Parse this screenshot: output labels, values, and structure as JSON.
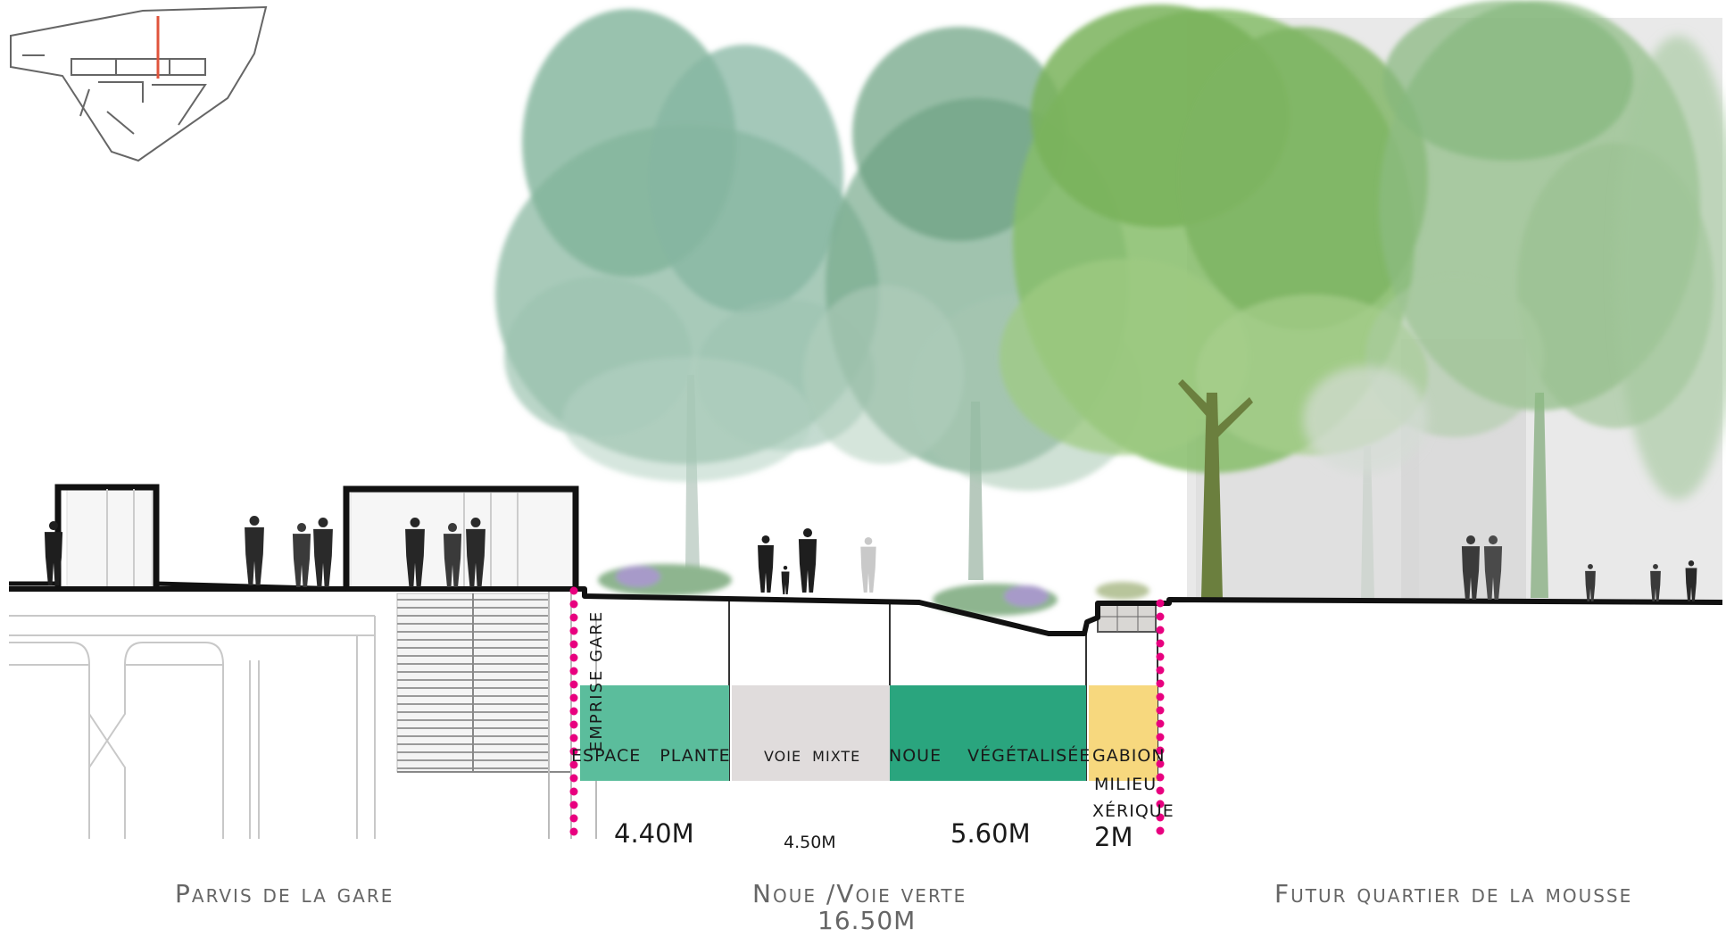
{
  "labels": {
    "emprise": "EMPRISE GARE",
    "espace_plante": "ESPACE PLANTE",
    "voie_mixte": "VOIE MIXTE",
    "noue_vegetalisee": "NOUE VÉGÉTALISÉE",
    "gabion": "GABION",
    "milieu": "MILIEU",
    "xerique": "XÉRIQUE"
  },
  "measures": {
    "m1": "4.40M",
    "m2": "4.50M",
    "m3": "5.60M",
    "m4": "2M"
  },
  "zones": {
    "left": "Parvis de la gare",
    "middle": "Noue /Voie verte",
    "middle_total": "16.50M",
    "right": "Futur quartier de la mousse"
  },
  "colors": {
    "espace_plante": "#5bbd9c",
    "voie_mixte": "#e0dcdc",
    "noue_vegetalisee": "#2aa57e",
    "gabion": "#f7d87e",
    "limit_dots": "#e8007f",
    "locator_marker": "#e0543c"
  }
}
